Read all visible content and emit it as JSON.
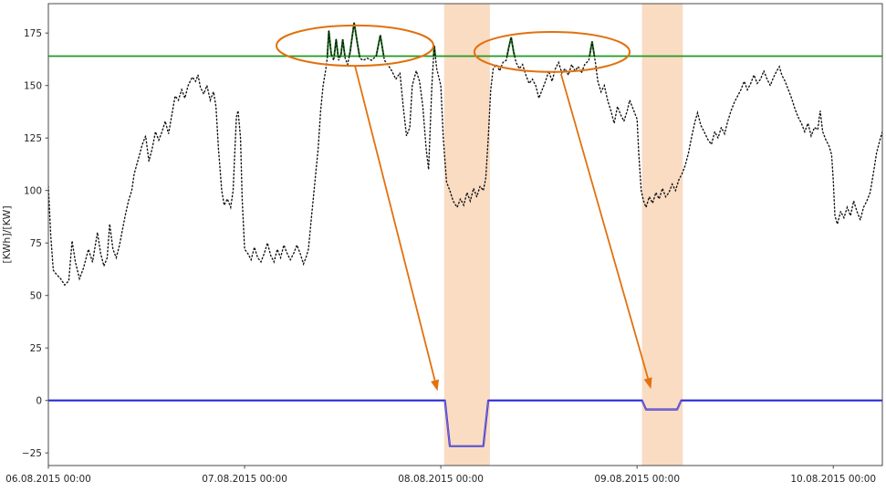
{
  "figure": {
    "title": "",
    "kind": "matplotlib-line-figure"
  },
  "chart_data": {
    "type": "line",
    "title": "",
    "xlabel": "",
    "ylabel": "[KWh]/[KW]",
    "x_unit_hours_from": "06.08.2015 00:00",
    "xlim": [
      0,
      102
    ],
    "ylim": [
      -31,
      189
    ],
    "grid": false,
    "legend": "none",
    "x_ticks": [
      {
        "t": 0,
        "label": "06.08.2015 00:00"
      },
      {
        "t": 24,
        "label": "07.08.2015 00:00"
      },
      {
        "t": 48,
        "label": "08.08.2015 00:00"
      },
      {
        "t": 72,
        "label": "09.08.2015 00:00"
      },
      {
        "t": 96,
        "label": "10.08.2015 00:00"
      }
    ],
    "y_ticks": [
      {
        "v": 175,
        "label": "175"
      },
      {
        "v": 150,
        "label": "150"
      },
      {
        "v": 125,
        "label": "125"
      },
      {
        "v": 100,
        "label": "100"
      },
      {
        "v": 75,
        "label": "75"
      },
      {
        "v": 50,
        "label": "50"
      },
      {
        "v": 25,
        "label": "25"
      },
      {
        "v": 0,
        "label": "0"
      },
      {
        "v": -25,
        "label": "−25"
      }
    ],
    "threshold": {
      "value": 164,
      "color": "#229a22"
    },
    "bands": [
      {
        "t_start": 48.4,
        "t_end": 54.0,
        "color": "#fadcc3"
      },
      {
        "t_start": 72.6,
        "t_end": 77.6,
        "color": "#fadcc3"
      }
    ],
    "series": [
      {
        "name": "load-profile",
        "style": "dotted",
        "color": "#141414",
        "points": [
          [
            0,
            102
          ],
          [
            0.3,
            78
          ],
          [
            0.6,
            62
          ],
          [
            1,
            60
          ],
          [
            1.5,
            58
          ],
          [
            2,
            55
          ],
          [
            2.5,
            57
          ],
          [
            2.9,
            76
          ],
          [
            3.3,
            66
          ],
          [
            3.8,
            58
          ],
          [
            4.3,
            63
          ],
          [
            4.9,
            72
          ],
          [
            5.4,
            66
          ],
          [
            6,
            80
          ],
          [
            6.4,
            70
          ],
          [
            6.8,
            64
          ],
          [
            7.2,
            68
          ],
          [
            7.5,
            84
          ],
          [
            7.9,
            72
          ],
          [
            8.3,
            68
          ],
          [
            8.7,
            74
          ],
          [
            9,
            80
          ],
          [
            9.4,
            88
          ],
          [
            9.8,
            95
          ],
          [
            10.2,
            100
          ],
          [
            10.5,
            108
          ],
          [
            11,
            115
          ],
          [
            11.5,
            122
          ],
          [
            11.9,
            126
          ],
          [
            12.3,
            114
          ],
          [
            12.7,
            120
          ],
          [
            13.1,
            128
          ],
          [
            13.5,
            124
          ],
          [
            13.9,
            128
          ],
          [
            14.3,
            133
          ],
          [
            14.7,
            127
          ],
          [
            15.1,
            136
          ],
          [
            15.5,
            145
          ],
          [
            15.9,
            143
          ],
          [
            16.3,
            148
          ],
          [
            16.7,
            144
          ],
          [
            17.1,
            150
          ],
          [
            17.6,
            154
          ],
          [
            18,
            152
          ],
          [
            18.3,
            155
          ],
          [
            18.6,
            149
          ],
          [
            19,
            146
          ],
          [
            19.4,
            150
          ],
          [
            19.8,
            143
          ],
          [
            20.2,
            147
          ],
          [
            20.5,
            140
          ],
          [
            20.8,
            120
          ],
          [
            21.2,
            100
          ],
          [
            21.5,
            93
          ],
          [
            21.9,
            96
          ],
          [
            22.3,
            92
          ],
          [
            22.6,
            100
          ],
          [
            22.8,
            118
          ],
          [
            23,
            135
          ],
          [
            23.2,
            138
          ],
          [
            23.5,
            125
          ],
          [
            23.7,
            96
          ],
          [
            24,
            72
          ],
          [
            24.4,
            70
          ],
          [
            24.8,
            67
          ],
          [
            25.2,
            73
          ],
          [
            25.6,
            68
          ],
          [
            26,
            66
          ],
          [
            26.4,
            70
          ],
          [
            26.8,
            75
          ],
          [
            27.2,
            69
          ],
          [
            27.6,
            66
          ],
          [
            28,
            72
          ],
          [
            28.4,
            68
          ],
          [
            28.8,
            74
          ],
          [
            29.2,
            70
          ],
          [
            29.6,
            67
          ],
          [
            30,
            70
          ],
          [
            30.4,
            74
          ],
          [
            30.8,
            70
          ],
          [
            31.2,
            65
          ],
          [
            31.5,
            68
          ],
          [
            31.8,
            72
          ],
          [
            32.2,
            88
          ],
          [
            32.6,
            104
          ],
          [
            33,
            120
          ],
          [
            33.3,
            138
          ],
          [
            33.6,
            150
          ],
          [
            33.9,
            157
          ],
          [
            34.1,
            163
          ],
          [
            34.3,
            176
          ],
          [
            34.6,
            165
          ],
          [
            34.9,
            162
          ],
          [
            35.2,
            172
          ],
          [
            35.5,
            162
          ],
          [
            35.8,
            165
          ],
          [
            36,
            172
          ],
          [
            36.3,
            163
          ],
          [
            36.6,
            160
          ],
          [
            36.9,
            166
          ],
          [
            37.4,
            180
          ],
          [
            37.8,
            170
          ],
          [
            38.1,
            163
          ],
          [
            38.5,
            162
          ],
          [
            39,
            163
          ],
          [
            39.5,
            162
          ],
          [
            40.1,
            164
          ],
          [
            40.6,
            174
          ],
          [
            41.1,
            162
          ],
          [
            41.5,
            160
          ],
          [
            42,
            157
          ],
          [
            42.5,
            153
          ],
          [
            43,
            156
          ],
          [
            43.4,
            140
          ],
          [
            43.8,
            126
          ],
          [
            44.2,
            130
          ],
          [
            44.5,
            150
          ],
          [
            45,
            157
          ],
          [
            45.4,
            152
          ],
          [
            45.8,
            140
          ],
          [
            46.2,
            120
          ],
          [
            46.5,
            110
          ],
          [
            46.9,
            150
          ],
          [
            47.2,
            169
          ],
          [
            47.5,
            158
          ],
          [
            48,
            150
          ],
          [
            48.3,
            125
          ],
          [
            48.7,
            104
          ],
          [
            49.1,
            100
          ],
          [
            49.5,
            95
          ],
          [
            50,
            92
          ],
          [
            50.4,
            96
          ],
          [
            50.8,
            93
          ],
          [
            51.2,
            99
          ],
          [
            51.6,
            95
          ],
          [
            52,
            101
          ],
          [
            52.4,
            97
          ],
          [
            52.8,
            102
          ],
          [
            53.2,
            100
          ],
          [
            53.5,
            106
          ],
          [
            53.8,
            125
          ],
          [
            54.1,
            148
          ],
          [
            54.4,
            158
          ],
          [
            54.8,
            160
          ],
          [
            55.2,
            157
          ],
          [
            55.6,
            161
          ],
          [
            56,
            162
          ],
          [
            56.3,
            168
          ],
          [
            56.6,
            173
          ],
          [
            56.9,
            166
          ],
          [
            57.2,
            161
          ],
          [
            57.6,
            158
          ],
          [
            58,
            160
          ],
          [
            58.4,
            155
          ],
          [
            58.8,
            151
          ],
          [
            59.2,
            153
          ],
          [
            59.6,
            150
          ],
          [
            60,
            144
          ],
          [
            60.4,
            148
          ],
          [
            60.8,
            152
          ],
          [
            61.2,
            157
          ],
          [
            61.6,
            152
          ],
          [
            62,
            158
          ],
          [
            62.4,
            161
          ],
          [
            62.8,
            156
          ],
          [
            63.2,
            158
          ],
          [
            63.6,
            155
          ],
          [
            64,
            160
          ],
          [
            64.4,
            157
          ],
          [
            64.8,
            159
          ],
          [
            65.2,
            156
          ],
          [
            65.6,
            160
          ],
          [
            66.1,
            162
          ],
          [
            66.5,
            171
          ],
          [
            66.9,
            161
          ],
          [
            67.2,
            152
          ],
          [
            67.6,
            147
          ],
          [
            68,
            150
          ],
          [
            68.4,
            143
          ],
          [
            68.8,
            138
          ],
          [
            69.2,
            132
          ],
          [
            69.6,
            140
          ],
          [
            70,
            136
          ],
          [
            70.4,
            133
          ],
          [
            70.8,
            138
          ],
          [
            71.1,
            143
          ],
          [
            71.4,
            140
          ],
          [
            71.7,
            137
          ],
          [
            72,
            134
          ],
          [
            72.2,
            118
          ],
          [
            72.5,
            100
          ],
          [
            72.8,
            95
          ],
          [
            73.1,
            92
          ],
          [
            73.5,
            97
          ],
          [
            73.9,
            94
          ],
          [
            74.3,
            99
          ],
          [
            74.7,
            96
          ],
          [
            75.1,
            101
          ],
          [
            75.5,
            97
          ],
          [
            75.9,
            99
          ],
          [
            76.3,
            103
          ],
          [
            76.7,
            100
          ],
          [
            77.1,
            105
          ],
          [
            77.5,
            108
          ],
          [
            77.9,
            112
          ],
          [
            78.3,
            118
          ],
          [
            78.7,
            126
          ],
          [
            79.1,
            133
          ],
          [
            79.4,
            137
          ],
          [
            79.8,
            131
          ],
          [
            80.2,
            128
          ],
          [
            80.7,
            124
          ],
          [
            81.1,
            122
          ],
          [
            81.5,
            128
          ],
          [
            81.9,
            125
          ],
          [
            82.3,
            130
          ],
          [
            82.7,
            127
          ],
          [
            83.1,
            133
          ],
          [
            83.5,
            138
          ],
          [
            83.9,
            142
          ],
          [
            84.3,
            145
          ],
          [
            84.7,
            148
          ],
          [
            85.1,
            152
          ],
          [
            85.5,
            148
          ],
          [
            85.9,
            151
          ],
          [
            86.3,
            155
          ],
          [
            86.7,
            151
          ],
          [
            87.1,
            153
          ],
          [
            87.5,
            157
          ],
          [
            87.9,
            153
          ],
          [
            88.3,
            150
          ],
          [
            88.7,
            154
          ],
          [
            89.1,
            157
          ],
          [
            89.4,
            159
          ],
          [
            89.7,
            155
          ],
          [
            90.1,
            152
          ],
          [
            90.5,
            148
          ],
          [
            90.9,
            144
          ],
          [
            91.3,
            139
          ],
          [
            91.7,
            135
          ],
          [
            92.1,
            132
          ],
          [
            92.5,
            128
          ],
          [
            92.9,
            132
          ],
          [
            93.3,
            126
          ],
          [
            93.7,
            130
          ],
          [
            94.1,
            129
          ],
          [
            94.4,
            138
          ],
          [
            94.7,
            128
          ],
          [
            95.1,
            124
          ],
          [
            95.5,
            121
          ],
          [
            95.8,
            117
          ],
          [
            96,
            105
          ],
          [
            96.2,
            88
          ],
          [
            96.5,
            84
          ],
          [
            96.9,
            90
          ],
          [
            97.3,
            87
          ],
          [
            97.7,
            92
          ],
          [
            98.1,
            88
          ],
          [
            98.5,
            95
          ],
          [
            98.9,
            90
          ],
          [
            99.3,
            86
          ],
          [
            99.7,
            92
          ],
          [
            100.1,
            95
          ],
          [
            100.5,
            99
          ],
          [
            100.9,
            108
          ],
          [
            101.3,
            118
          ],
          [
            101.7,
            124
          ],
          [
            102,
            128
          ]
        ]
      },
      {
        "name": "load-above-threshold",
        "style": "solid",
        "color": "#157a15",
        "clip_above_value": 164,
        "source": "load-profile"
      },
      {
        "name": "power-reduction",
        "style": "solid",
        "color": "#2828dc",
        "points": [
          [
            0,
            0
          ],
          [
            48.5,
            0
          ],
          [
            49.1,
            -21.8
          ],
          [
            53.2,
            -21.8
          ],
          [
            53.8,
            0
          ],
          [
            72.6,
            0
          ],
          [
            73.1,
            -4.3
          ],
          [
            76.9,
            -4.3
          ],
          [
            77.4,
            0
          ],
          [
            102,
            0
          ]
        ]
      },
      {
        "name": "power-reduction-dip-core",
        "style": "solid",
        "color": "#7668cc",
        "segments": [
          [
            [
              48.5,
              0
            ],
            [
              49.1,
              -21.8
            ],
            [
              53.2,
              -21.8
            ],
            [
              53.8,
              0
            ]
          ],
          [
            [
              72.6,
              0
            ],
            [
              73.1,
              -4.3
            ],
            [
              76.9,
              -4.3
            ],
            [
              77.4,
              0
            ]
          ]
        ]
      }
    ],
    "annotations": {
      "color": "#e2710e",
      "ellipses": [
        {
          "t_center": 37.5,
          "v_center": 169,
          "t_radius": 9.6,
          "v_radius": 9.6
        },
        {
          "t_center": 61.6,
          "v_center": 166,
          "t_radius": 9.5,
          "v_radius": 9.5
        }
      ],
      "arrows": [
        {
          "from": [
            37.5,
            159.4
          ],
          "to": [
            47.6,
            4.5
          ]
        },
        {
          "from": [
            62.7,
            155.5
          ],
          "to": [
            73.7,
            5.5
          ]
        }
      ]
    }
  }
}
